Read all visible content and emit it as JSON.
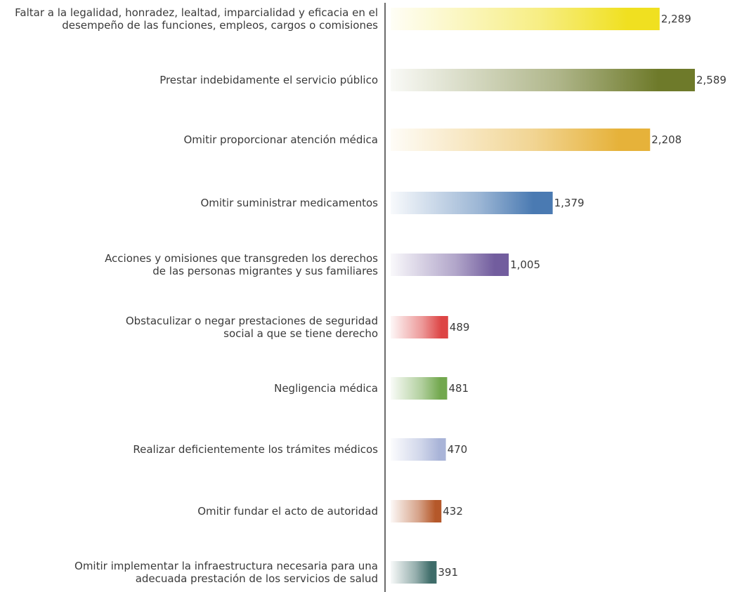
{
  "chart_data": {
    "type": "bar",
    "orientation": "horizontal",
    "categories": [
      [
        "Faltar a la legalidad, honradez, lealtad, imparcialidad y eficacia en el",
        "desempeño de las funciones, empleos, cargos o comisiones"
      ],
      [
        "Prestar indebidamente el servicio público"
      ],
      [
        "Omitir proporcionar atención médica"
      ],
      [
        "Omitir suministrar medicamentos"
      ],
      [
        "Acciones y omisiones que transgreden los derechos",
        "de las personas migrantes y sus familiares"
      ],
      [
        "Obstaculizar o negar prestaciones de seguridad",
        "social a que se tiene derecho"
      ],
      [
        "Negligencia médica"
      ],
      [
        "Realizar deficientemente los trámites médicos"
      ],
      [
        "Omitir fundar el acto de autoridad"
      ],
      [
        "Omitir implementar la infraestructura necesaria para una",
        "adecuada prestación de los servicios de salud"
      ]
    ],
    "values": [
      2289,
      2589,
      2208,
      1379,
      1005,
      489,
      481,
      470,
      432,
      391
    ],
    "value_labels": [
      "2,289",
      "2,589",
      "2,208",
      "1,379",
      "1,005",
      "489",
      "481",
      "470",
      "432",
      "391"
    ],
    "bar_colors": [
      "#f0e020",
      "#6e7a2a",
      "#e6b23a",
      "#4a7ab2",
      "#725d9e",
      "#dd4545",
      "#72a84e",
      "#a9b4d8",
      "#b5582a",
      "#3e6c69"
    ],
    "grid": false,
    "legend": "none"
  }
}
